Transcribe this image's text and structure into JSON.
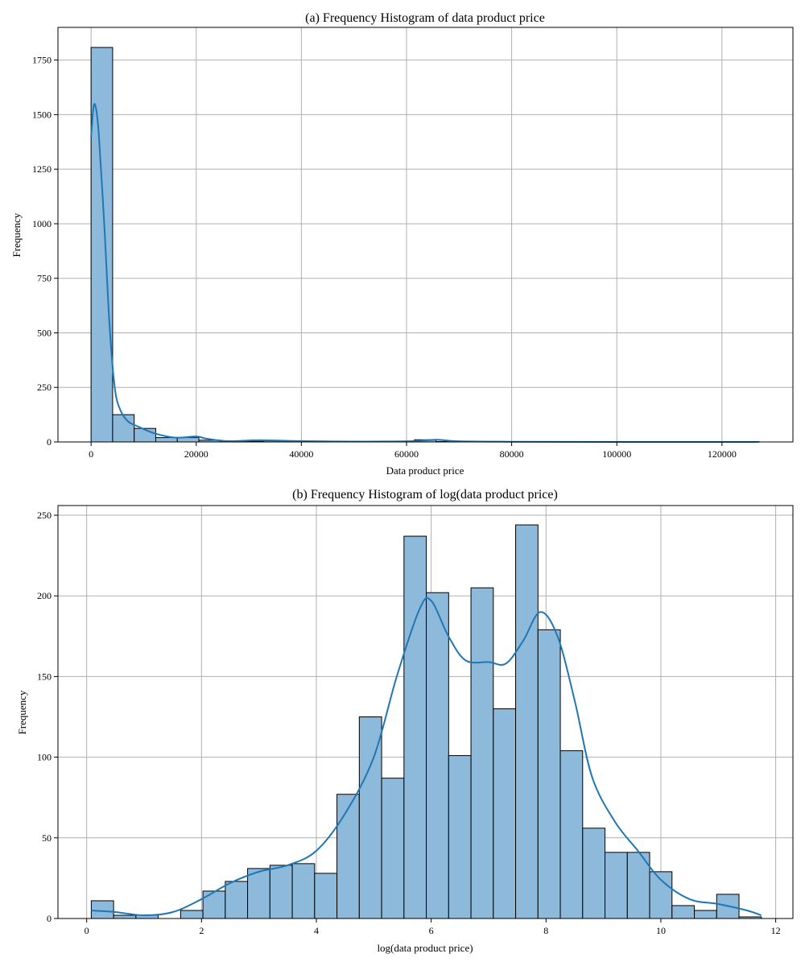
{
  "chart_data": [
    {
      "type": "bar",
      "title": "(a) Frequency Histogram of data product price",
      "xlabel": "Data product price",
      "ylabel": "Frequency",
      "xlim": [
        -6300,
        133500
      ],
      "ylim": [
        0,
        1900
      ],
      "xticks": [
        0,
        20000,
        40000,
        60000,
        80000,
        100000,
        120000
      ],
      "yticks": [
        0,
        250,
        500,
        750,
        1000,
        1250,
        1500,
        1750
      ],
      "grid": true,
      "bin_start": 0,
      "bin_width": 4100,
      "values": [
        1808,
        125,
        62,
        20,
        20,
        8,
        3,
        3,
        5,
        2,
        3,
        2,
        1,
        1,
        1,
        10,
        2,
        0,
        1,
        0,
        0,
        0,
        0,
        0,
        0,
        0,
        0,
        0,
        0,
        0,
        1
      ],
      "kde_x": [
        0,
        500,
        1000,
        1500,
        2500,
        3500,
        4500,
        5500,
        7000,
        9000,
        12000,
        16000,
        20000,
        22000,
        26000,
        32000,
        40000,
        50000,
        60000,
        64000,
        66000,
        70000,
        80000,
        100000,
        127000
      ],
      "kde_y": [
        1400,
        1540,
        1520,
        1400,
        1000,
        540,
        250,
        150,
        95,
        70,
        40,
        20,
        25,
        15,
        4,
        8,
        4,
        2,
        3,
        8,
        10,
        3,
        1,
        0,
        0
      ]
    },
    {
      "type": "bar",
      "title": "(b) Frequency Histogram of log(data product price)",
      "xlabel": "log(data product price)",
      "ylabel": "Frequency",
      "xlim": [
        -0.5,
        12.3
      ],
      "ylim": [
        0,
        256
      ],
      "xticks": [
        0,
        2,
        4,
        6,
        8,
        10,
        12
      ],
      "yticks": [
        0,
        50,
        100,
        150,
        200,
        250
      ],
      "grid": true,
      "bin_start": 0.08,
      "bin_width": 0.389,
      "values": [
        11,
        2,
        2,
        0,
        5,
        17,
        23,
        31,
        33,
        34,
        28,
        77,
        125,
        87,
        237,
        202,
        101,
        205,
        130,
        244,
        179,
        104,
        56,
        41,
        41,
        29,
        8,
        5,
        15,
        1
      ],
      "kde_x": [
        0.08,
        0.5,
        1.0,
        1.5,
        2.0,
        2.5,
        3.0,
        3.5,
        4.0,
        4.5,
        5.0,
        5.4,
        5.8,
        6.0,
        6.3,
        6.6,
        7.0,
        7.3,
        7.6,
        7.9,
        8.2,
        8.5,
        8.8,
        9.2,
        9.6,
        10.0,
        10.5,
        11.0,
        11.5,
        11.75
      ],
      "kde_y": [
        5,
        4,
        2,
        4,
        12,
        22,
        29,
        33,
        42,
        65,
        100,
        150,
        192,
        197,
        175,
        160,
        159,
        158,
        172,
        190,
        175,
        135,
        88,
        60,
        42,
        24,
        12,
        9,
        5,
        2
      ]
    }
  ]
}
